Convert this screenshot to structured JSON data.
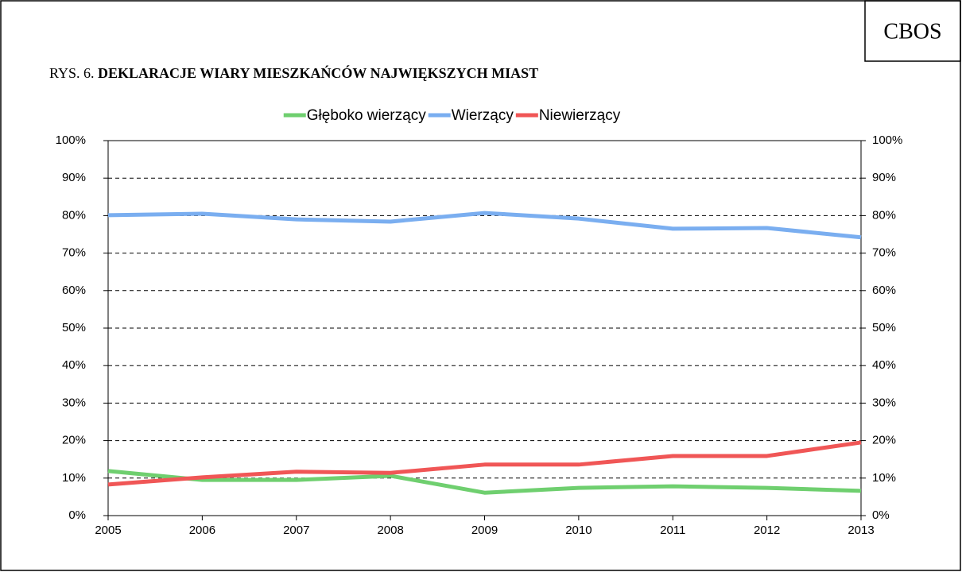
{
  "chart_data": {
    "type": "line",
    "brand": "CBOS",
    "figure_label": "RYS. 6.",
    "title": "DEKLARACJE WIARY MIESZKAŃCÓW NAJWIĘKSZYCH MIAST",
    "x": [
      2005,
      2006,
      2007,
      2008,
      2009,
      2010,
      2011,
      2012,
      2013
    ],
    "series": [
      {
        "name": "Głęboko wierzący",
        "color": "#6fcf6f",
        "values": [
          11.9,
          9.5,
          9.5,
          10.6,
          6.1,
          7.4,
          7.8,
          7.4,
          6.6
        ]
      },
      {
        "name": "Wierzący",
        "color": "#7aaef0",
        "values": [
          80.1,
          80.5,
          79.0,
          78.4,
          80.7,
          79.2,
          76.5,
          76.7,
          74.2
        ]
      },
      {
        "name": "Niewierzący",
        "color": "#f05656",
        "values": [
          8.3,
          10.2,
          11.7,
          11.4,
          13.6,
          13.6,
          15.9,
          15.9,
          19.5
        ]
      }
    ],
    "xlim": [
      2005,
      2013
    ],
    "xticks": [
      2005,
      2006,
      2007,
      2008,
      2009,
      2010,
      2011,
      2012,
      2013
    ],
    "ylim": [
      0,
      100
    ],
    "yticks": [
      {
        "value": 0,
        "label": "0%"
      },
      {
        "value": 10,
        "label": "10%"
      },
      {
        "value": 20,
        "label": "20%"
      },
      {
        "value": 30,
        "label": "30%"
      },
      {
        "value": 40,
        "label": "40%"
      },
      {
        "value": 50,
        "label": "50%"
      },
      {
        "value": 60,
        "label": "60%"
      },
      {
        "value": 70,
        "label": "70%"
      },
      {
        "value": 80,
        "label": "80%"
      },
      {
        "value": 90,
        "label": "90%"
      },
      {
        "value": 100,
        "label": "100%"
      }
    ],
    "y2lim": [
      0,
      100
    ],
    "y2ticks": [
      {
        "value": 0,
        "label": "0%"
      },
      {
        "value": 10,
        "label": "10%"
      },
      {
        "value": 20,
        "label": "20%"
      },
      {
        "value": 30,
        "label": "30%"
      },
      {
        "value": 40,
        "label": "40%"
      },
      {
        "value": 50,
        "label": "50%"
      },
      {
        "value": 60,
        "label": "60%"
      },
      {
        "value": 70,
        "label": "70%"
      },
      {
        "value": 80,
        "label": "80%"
      },
      {
        "value": 90,
        "label": "90%"
      },
      {
        "value": 100,
        "label": "100%"
      }
    ],
    "grid": true,
    "legend": "top"
  }
}
